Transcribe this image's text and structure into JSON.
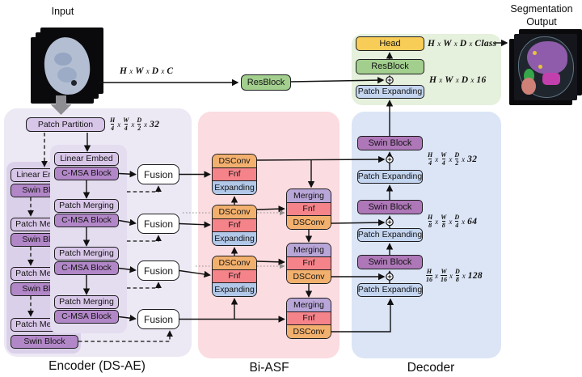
{
  "input": {
    "title": "Input",
    "dim": "H x W x D x C"
  },
  "output": {
    "title": "Segmentation Output"
  },
  "mid_resblock": {
    "label": "ResBlock"
  },
  "encoder": {
    "section_label": "Encoder (DS-AE)",
    "patch_partition": "Patch Partition",
    "dim": "H/4 x W/4 x D/2 x 32",
    "fusion_label": "Fusion",
    "front": [
      "Linear Embed",
      "C-MSA Block",
      "Patch Merging",
      "C-MSA Block",
      "Patch Merging",
      "C-MSA Block",
      "Patch Merging",
      "C-MSA Block"
    ],
    "background": [
      "Linear Embed",
      "Swin Block",
      "Patch Merging",
      "Swin Block",
      "Patch Merging",
      "Swin Block",
      "Patch Merging"
    ],
    "bottom_swin": "Swin Block"
  },
  "biasf": {
    "section_label": "Bi-ASF",
    "left_rows": [
      "DSConv",
      "Fnf",
      "Expanding"
    ],
    "right_rows": [
      "Merging",
      "Fnf",
      "DSConv"
    ]
  },
  "decoder": {
    "section_label": "Decoder",
    "swin_label": "Swin Block",
    "pe_label": "Patch Expanding",
    "dims": [
      "H/4 x W/4 x D/2 x 32",
      "H/8 x W/8 x D/4 x 64",
      "H/16 x W/16 x D/8 x 128"
    ]
  },
  "headbox": {
    "head": "Head",
    "resblock": "ResBlock",
    "patch_expanding": "Patch Expanding",
    "dim_class": "H x W x D x Class",
    "dim_16": "H x W x D x 16"
  },
  "colors": {
    "panel_encoder": "#ece8f4",
    "panel_biasf": "#fbdce0",
    "panel_decoder": "#dbe5f6",
    "panel_head": "#e5f0dd",
    "block_light_purple": "#d8c6e8",
    "block_purple": "#b287c8",
    "block_swin": "#ae77b8",
    "block_merging": "#b9a6d8",
    "block_dsconv": "#f2b06e",
    "block_fnf": "#f5838a",
    "block_expanding": "#b2c8e9",
    "block_head": "#f8cd57",
    "block_resblock": "#a2cf8e",
    "block_patch_expanding": "#c4d5f0"
  }
}
